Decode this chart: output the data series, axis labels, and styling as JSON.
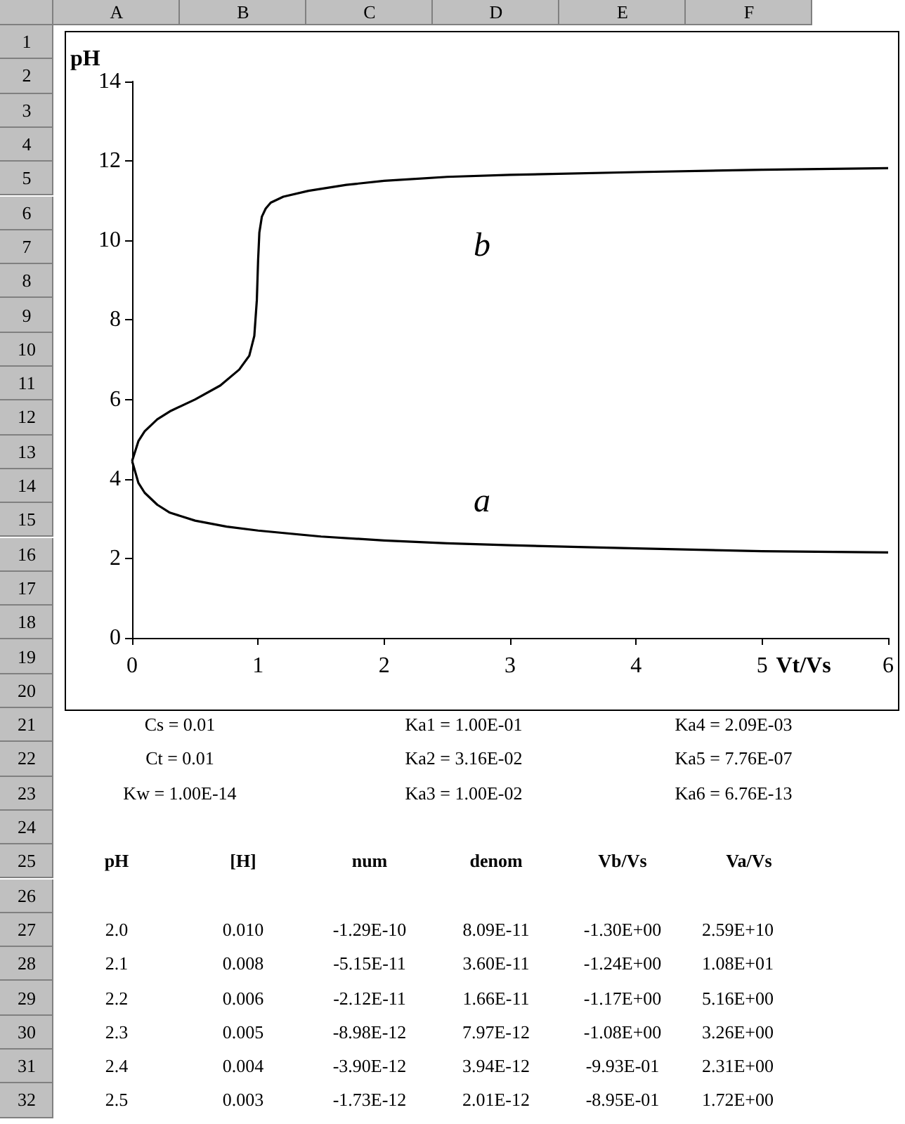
{
  "chart_data": {
    "type": "line",
    "xlabel": "Vt/Vs",
    "ylabel": "pH",
    "xlim": [
      0,
      6
    ],
    "xticks": [
      0,
      1,
      2,
      3,
      4,
      5,
      6
    ],
    "ylim": [
      0,
      14
    ],
    "yticks": [
      0,
      2,
      4,
      6,
      8,
      10,
      12,
      14
    ],
    "grid": false,
    "marker": "none",
    "line_style": "solid",
    "series": [
      {
        "color": "#000000",
        "x": [
          0,
          0.05,
          0.1,
          0.2,
          0.3,
          0.5,
          0.75,
          1,
          1.5,
          2,
          2.5,
          3,
          4,
          5,
          6
        ],
        "values": [
          4.45,
          3.9,
          3.65,
          3.35,
          3.15,
          2.95,
          2.8,
          2.7,
          2.55,
          2.45,
          2.38,
          2.33,
          2.25,
          2.18,
          2.15
        ]
      },
      {
        "color": "#000000",
        "x": [
          0,
          0.05,
          0.1,
          0.2,
          0.3,
          0.5,
          0.7,
          0.85,
          0.93,
          0.97,
          0.99,
          1.0,
          1.01,
          1.03,
          1.06,
          1.1,
          1.2,
          1.4,
          1.7,
          2,
          2.5,
          3,
          4,
          5,
          6
        ],
        "values": [
          4.45,
          4.95,
          5.2,
          5.5,
          5.7,
          6.0,
          6.35,
          6.75,
          7.1,
          7.6,
          8.5,
          9.5,
          10.2,
          10.6,
          10.8,
          10.95,
          11.1,
          11.25,
          11.4,
          11.5,
          11.6,
          11.65,
          11.72,
          11.78,
          11.82
        ]
      }
    ],
    "annotations": [
      "b",
      "a",
      "A",
      "B",
      "C",
      "D",
      "E",
      "F",
      "1",
      "2",
      "3",
      "4",
      "5",
      "6",
      "7",
      "8",
      "9",
      "10",
      "11",
      "12",
      "13",
      "14",
      "15",
      "16",
      "17",
      "18",
      "19",
      "20",
      "21",
      "22",
      "23",
      "24",
      "25",
      "26",
      "27",
      "28",
      "29",
      "30",
      "31",
      "32",
      "Cs = 0.01",
      "Ka1 = 1.00E-01",
      "Ka4 = 2.09E-03",
      "Ct = 0.01",
      "Ka2 = 3.16E-02",
      "Ka5 = 7.76E-07",
      "Kw = 1.00E-14",
      "Ka3 = 1.00E-02",
      "Ka6 = 6.76E-13",
      "pH",
      "[H]",
      "num",
      "denom",
      "Vb/Vs",
      "Va/Vs",
      "2.0",
      "0.010",
      "-1.29E-10",
      "8.09E-11",
      "-1.30E+00",
      "2.59E+10",
      "2.1",
      "0.008",
      "-5.15E-11",
      "3.60E-11",
      "-1.24E+00",
      "1.08E+01",
      "2.2",
      "0.006",
      "-2.12E-11",
      "1.66E-11",
      "-1.17E+00",
      "5.16E+00",
      "2.3",
      "0.005",
      "-8.98E-12",
      "7.97E-12",
      "-1.08E+00",
      "3.26E+00",
      "2.4",
      "0.004",
      "-3.90E-12",
      "3.94E-12",
      "-9.93E-01",
      "2.31E+00",
      "2.5",
      "0.003",
      "-1.73E-12",
      "2.01E-12",
      "-8.95E-01",
      "1.72E+00"
    ]
  }
}
